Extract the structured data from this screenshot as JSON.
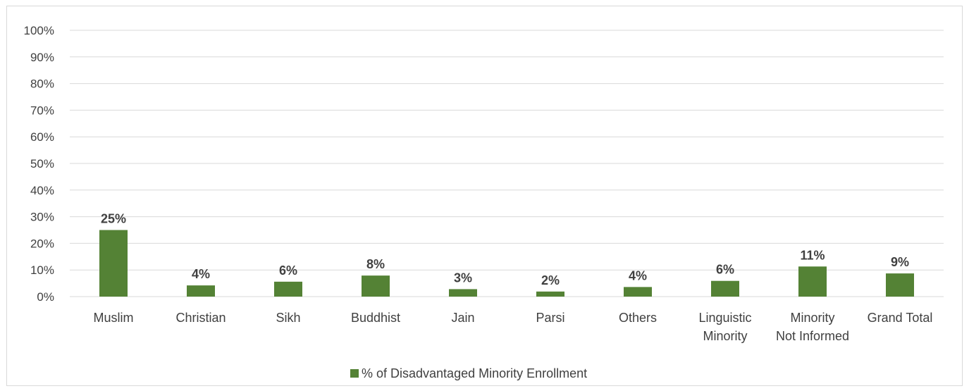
{
  "chart_data": {
    "type": "bar",
    "categories": [
      [
        "Muslim"
      ],
      [
        "Christian"
      ],
      [
        "Sikh"
      ],
      [
        "Buddhist"
      ],
      [
        "Jain"
      ],
      [
        "Parsi"
      ],
      [
        "Others"
      ],
      [
        "Linguistic",
        "Minority"
      ],
      [
        "Minority",
        "Not Informed"
      ],
      [
        "Grand Total"
      ]
    ],
    "series": [
      {
        "name": "% of Disadvantaged Minority Enrollment",
        "values": [
          25,
          4,
          6,
          8,
          3,
          2,
          4,
          6,
          11,
          9
        ],
        "plotted_values": [
          25,
          4.2,
          5.6,
          7.9,
          2.8,
          1.9,
          3.6,
          5.9,
          11.3,
          8.7
        ],
        "data_labels": [
          "25%",
          "4%",
          "6%",
          "8%",
          "3%",
          "2%",
          "4%",
          "6%",
          "11%",
          "9%"
        ],
        "color": "#548235"
      }
    ],
    "y_ticks": [
      "0%",
      "10%",
      "20%",
      "30%",
      "40%",
      "50%",
      "60%",
      "70%",
      "80%",
      "90%",
      "100%"
    ],
    "ylim": [
      0,
      100
    ],
    "grid": true,
    "legend_position": "bottom",
    "gridline_color": "#d9d9d9",
    "text_color": "#404040"
  }
}
